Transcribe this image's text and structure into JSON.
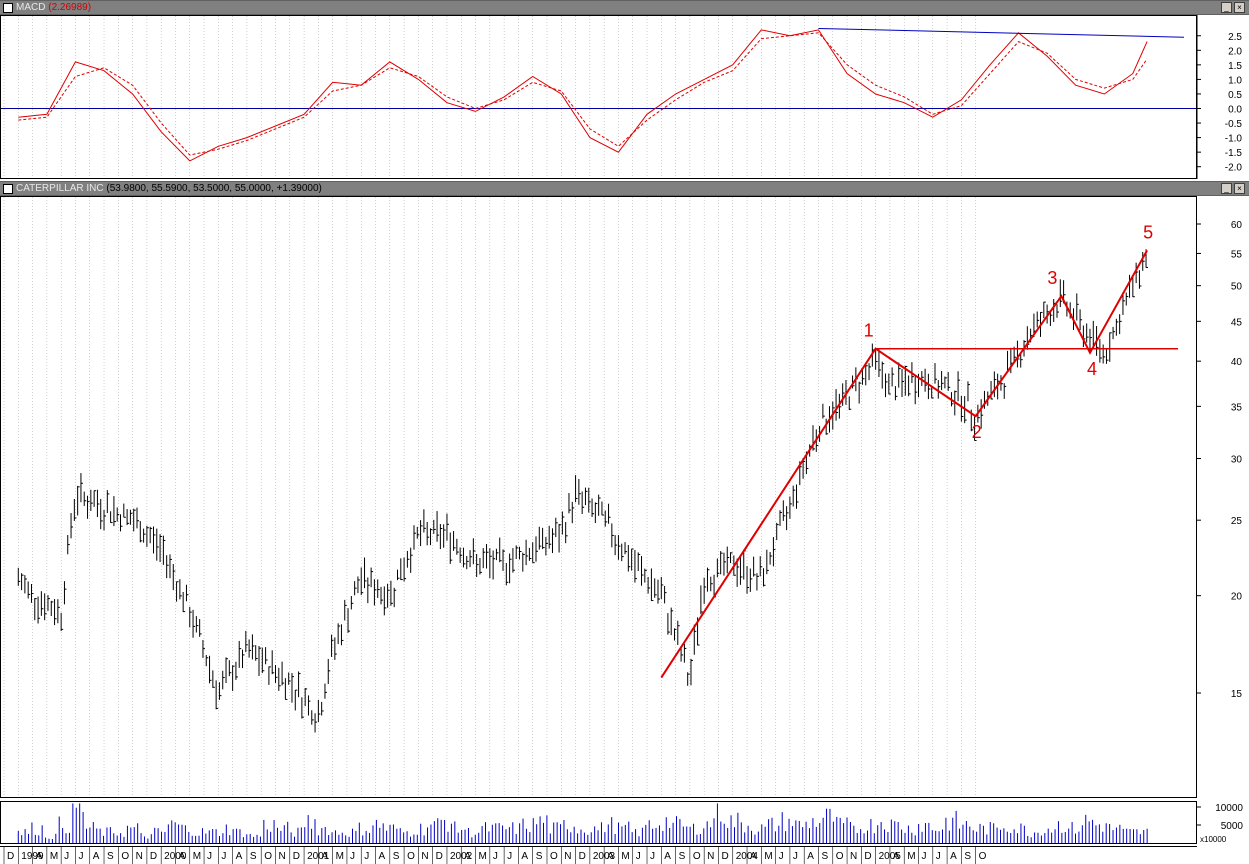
{
  "macd_panel": {
    "title": "MACD",
    "value": "(2.26989)",
    "y_ticks": [
      "2.5",
      "2.0",
      "1.5",
      "1.0",
      "0.5",
      "0.0",
      "-0.5",
      "-1.0",
      "-1.5",
      "-2.0"
    ],
    "y_tick_values": [
      2.5,
      2.0,
      1.5,
      1.0,
      0.5,
      0.0,
      -0.5,
      -1.0,
      -1.5,
      -2.0
    ]
  },
  "price_panel": {
    "title": "CATERPILLAR INC",
    "ohlc": "(53.9800, 55.5900, 53.5000, 55.0000, +1.39000)",
    "y_ticks": [
      "60",
      "55",
      "50",
      "45",
      "40",
      "35",
      "30",
      "25",
      "20",
      "15"
    ],
    "y_tick_values": [
      60,
      55,
      50,
      45,
      40,
      35,
      30,
      25,
      20,
      15
    ],
    "wave_labels": [
      "1",
      "2",
      "3",
      "4",
      "5"
    ],
    "wave_label_color": "#e00000"
  },
  "volume_panel": {
    "y_ticks": [
      "10000",
      "5000"
    ],
    "multiplier": "x10000"
  },
  "x_axis_labels": [
    "D",
    "1999",
    "A",
    "M",
    "J",
    "J",
    "A",
    "S",
    "O",
    "N",
    "D",
    "2000",
    "A",
    "M",
    "J",
    "J",
    "A",
    "S",
    "O",
    "N",
    "D",
    "2001",
    "A",
    "M",
    "J",
    "J",
    "A",
    "S",
    "O",
    "N",
    "D",
    "2002",
    "A",
    "M",
    "J",
    "J",
    "A",
    "S",
    "O",
    "N",
    "D",
    "2003",
    "A",
    "M",
    "J",
    "J",
    "A",
    "S",
    "O",
    "N",
    "D",
    "2004",
    "A",
    "M",
    "J",
    "J",
    "A",
    "S",
    "O",
    "N",
    "D",
    "2005",
    "A",
    "M",
    "J",
    "J",
    "A",
    "S",
    "O"
  ],
  "colors": {
    "price_bars": "#000000",
    "macd_line": "#e00000",
    "signal_line": "#e00000",
    "zero_line": "#0000a0",
    "trend_line": "#0000c0",
    "wave_lines": "#e00000",
    "volume_bars": "#0000c0",
    "grid": "#a0a0a0"
  },
  "chart_data": [
    {
      "type": "line",
      "title": "MACD",
      "series": [
        {
          "name": "MACD",
          "x": [
            "1999-01",
            "1999-03",
            "1999-05",
            "1999-07",
            "1999-09",
            "1999-11",
            "2000-01",
            "2000-03",
            "2000-05",
            "2000-07",
            "2000-09",
            "2000-11",
            "2001-01",
            "2001-03",
            "2001-05",
            "2001-07",
            "2001-09",
            "2001-11",
            "2002-01",
            "2002-03",
            "2002-05",
            "2002-07",
            "2002-09",
            "2002-11",
            "2003-01",
            "2003-03",
            "2003-05",
            "2003-07",
            "2003-09",
            "2003-11",
            "2004-01",
            "2004-03",
            "2004-05",
            "2004-07",
            "2004-09",
            "2004-11",
            "2005-01",
            "2005-03",
            "2005-05",
            "2005-07",
            "2005-08"
          ],
          "y": [
            -0.3,
            -0.2,
            1.6,
            1.3,
            0.5,
            -0.8,
            -1.8,
            -1.3,
            -1.0,
            -0.6,
            -0.2,
            0.9,
            0.8,
            1.6,
            1.0,
            0.2,
            -0.1,
            0.4,
            1.1,
            0.5,
            -1.0,
            -1.5,
            -0.2,
            0.5,
            1.0,
            1.5,
            2.7,
            2.5,
            2.7,
            1.2,
            0.5,
            0.2,
            -0.3,
            0.3,
            1.5,
            2.6,
            1.8,
            0.8,
            0.5,
            1.2,
            2.3
          ]
        },
        {
          "name": "Signal",
          "x": [
            "1999-01",
            "1999-03",
            "1999-05",
            "1999-07",
            "1999-09",
            "1999-11",
            "2000-01",
            "2000-03",
            "2000-05",
            "2000-07",
            "2000-09",
            "2000-11",
            "2001-01",
            "2001-03",
            "2001-05",
            "2001-07",
            "2001-09",
            "2001-11",
            "2002-01",
            "2002-03",
            "2002-05",
            "2002-07",
            "2002-09",
            "2002-11",
            "2003-01",
            "2003-03",
            "2003-05",
            "2003-07",
            "2003-09",
            "2003-11",
            "2004-01",
            "2004-03",
            "2004-05",
            "2004-07",
            "2004-09",
            "2004-11",
            "2005-01",
            "2005-03",
            "2005-05",
            "2005-07",
            "2005-08"
          ],
          "y": [
            -0.4,
            -0.3,
            1.1,
            1.4,
            0.8,
            -0.5,
            -1.6,
            -1.4,
            -1.1,
            -0.7,
            -0.3,
            0.6,
            0.8,
            1.4,
            1.1,
            0.4,
            0.0,
            0.3,
            0.9,
            0.6,
            -0.7,
            -1.3,
            -0.4,
            0.3,
            0.9,
            1.3,
            2.4,
            2.5,
            2.6,
            1.5,
            0.8,
            0.4,
            -0.2,
            0.1,
            1.2,
            2.3,
            1.9,
            1.0,
            0.7,
            1.0,
            1.7
          ]
        }
      ],
      "reference_lines": [
        0.0
      ],
      "ylim": [
        -2.1,
        2.9
      ]
    },
    {
      "type": "line",
      "title": "CATERPILLAR INC",
      "x": [
        "1999-01",
        "1999-02",
        "1999-04",
        "1999-05",
        "1999-07",
        "1999-09",
        "1999-11",
        "2000-01",
        "2000-03",
        "2000-05",
        "2000-07",
        "2000-08",
        "2000-10",
        "2000-11",
        "2001-01",
        "2001-03",
        "2001-05",
        "2001-07",
        "2001-09",
        "2001-11",
        "2002-01",
        "2002-03",
        "2002-04",
        "2002-06",
        "2002-08",
        "2002-10",
        "2002-12",
        "2003-01",
        "2003-03",
        "2003-05",
        "2003-07",
        "2003-09",
        "2003-11",
        "2004-01",
        "2004-02",
        "2004-04",
        "2004-06",
        "2004-07",
        "2004-08",
        "2004-10",
        "2004-12",
        "2005-01",
        "2005-02",
        "2005-04",
        "2005-05",
        "2005-06",
        "2005-08"
      ],
      "values": [
        21,
        20,
        19,
        27,
        26,
        25,
        23,
        19,
        15,
        17,
        16,
        15.5,
        14,
        17,
        21,
        20,
        24,
        24,
        22,
        22,
        23,
        24,
        27,
        25,
        22,
        20,
        15.5,
        21,
        22,
        21,
        26,
        33,
        36,
        40,
        37,
        38,
        37,
        36,
        34,
        38,
        44,
        46,
        48,
        43,
        41,
        45,
        55
      ],
      "yscale": "log",
      "ylim": [
        13,
        63
      ],
      "annotations": [
        {
          "label": "1",
          "x": "2004-01",
          "y": 41.5
        },
        {
          "label": "2",
          "x": "2004-08",
          "y": 34
        },
        {
          "label": "3",
          "x": "2005-02",
          "y": 48.5
        },
        {
          "label": "4",
          "x": "2005-04",
          "y": 41
        },
        {
          "label": "5",
          "x": "2005-08",
          "y": 55.5
        }
      ],
      "horizontal_lines": [
        41.5
      ]
    },
    {
      "type": "bar",
      "title": "",
      "x_range": [
        "1999-01",
        "2005-08"
      ],
      "values": [
        3,
        4,
        2,
        5,
        10,
        4,
        3,
        3,
        4,
        2,
        3,
        5,
        4,
        3,
        3,
        4,
        3,
        2,
        5,
        4,
        3,
        6,
        4,
        3,
        3,
        4,
        5,
        4,
        3,
        4,
        5,
        6,
        4,
        3,
        4,
        4,
        4,
        5,
        6,
        4,
        5,
        4,
        4,
        5,
        4,
        3,
        5,
        6,
        5,
        4,
        5,
        9,
        6,
        5,
        4,
        5,
        6,
        5,
        6,
        7,
        5,
        4,
        5,
        6,
        5,
        4,
        5,
        4,
        6,
        5,
        4,
        4,
        5,
        4,
        3,
        4,
        5,
        4,
        6,
        5,
        4,
        3,
        3
      ],
      "ylim": [
        0,
        11
      ]
    }
  ]
}
